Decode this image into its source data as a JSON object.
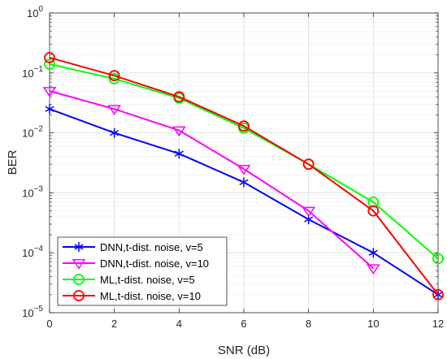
{
  "chart_data": {
    "type": "line",
    "title": "",
    "xlabel": "SNR (dB)",
    "ylabel": "BER",
    "x": [
      0,
      2,
      4,
      6,
      8,
      10,
      12
    ],
    "xticks": [
      0,
      2,
      4,
      6,
      8,
      10,
      12
    ],
    "xlim": [
      0,
      12
    ],
    "ylim": [
      1e-05,
      1
    ],
    "yscale": "log",
    "ytick_exponents": [
      -5,
      -4,
      -3,
      -2,
      -1,
      0
    ],
    "ytick_base": "10",
    "grid": true,
    "legend_position": "bottom-left",
    "series": [
      {
        "name": "DNN,t-dist. noise, v=5",
        "color": "#0000ff",
        "marker": "asterisk",
        "x": [
          0,
          2,
          4,
          6,
          8,
          10,
          12
        ],
        "values": [
          0.025,
          0.01,
          0.0045,
          0.0015,
          0.00036,
          0.0001,
          2e-05
        ]
      },
      {
        "name": "DNN,t-dist. noise, v=10",
        "color": "#ff00ff",
        "marker": "triangle-down",
        "x": [
          0,
          2,
          4,
          6,
          8,
          10
        ],
        "values": [
          0.05,
          0.025,
          0.011,
          0.0025,
          0.0005,
          5.5e-05
        ]
      },
      {
        "name": "ML,t-dist. noise, v=5",
        "color": "#00ff00",
        "marker": "circle",
        "x": [
          0,
          2,
          4,
          6,
          8,
          10,
          12
        ],
        "values": [
          0.14,
          0.08,
          0.038,
          0.012,
          0.003,
          0.0007,
          8e-05
        ]
      },
      {
        "name": "ML,t-dist. noise, v=10",
        "color": "#ff0000",
        "marker": "circle",
        "x": [
          0,
          2,
          4,
          6,
          8,
          10,
          12
        ],
        "values": [
          0.18,
          0.09,
          0.04,
          0.013,
          0.003,
          0.0005,
          2e-05
        ]
      }
    ]
  }
}
